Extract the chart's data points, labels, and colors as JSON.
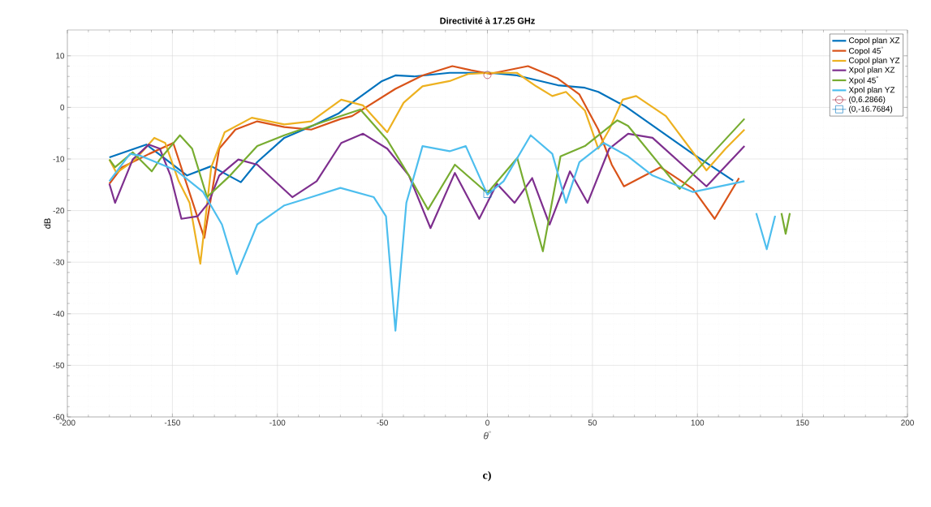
{
  "chart_data": {
    "type": "line",
    "title": "Directivité à 17.25 GHz",
    "xlabel": "*θ*$^{°}$",
    "ylabel": "dB",
    "xlim": [
      -200,
      200
    ],
    "xticks": [
      -200,
      -150,
      -100,
      -50,
      0,
      50,
      100,
      150,
      200
    ],
    "ylim": [
      -60,
      15
    ],
    "yticks": [
      -60,
      -50,
      -40,
      -30,
      -20,
      -10,
      0,
      10
    ],
    "grid": true,
    "legend": "top right",
    "annotations": [
      "c)"
    ],
    "series": [
      {
        "name": "Copol plan XZ",
        "color": "#0072bd",
        "x": [
          -180,
          -162.4,
          -143,
          -131.5,
          -117.4,
          -109.6,
          -96.7,
          -83,
          -71,
          -64.5,
          -50.2,
          -43.8,
          -35,
          -18,
          1,
          14,
          33.5,
          46.4,
          52.8,
          65.7,
          97.8,
          117
        ],
        "values": [
          -9.7,
          -7.2,
          -13.2,
          -11.4,
          -14.5,
          -10.6,
          -5.9,
          -3.5,
          -1.2,
          0.9,
          5.1,
          6.2,
          6.0,
          6.7,
          6.7,
          6.2,
          4.3,
          3.8,
          3.0,
          0.2,
          -9.0,
          -14.2
        ]
      },
      {
        "name": "Copol 45$^{°}$",
        "color": "#d95319",
        "x": [
          -180,
          -174,
          -161,
          -149.6,
          -134.8,
          -127.7,
          -120,
          -109.6,
          -96.7,
          -83.9,
          -69.6,
          -64.5,
          -43.8,
          -30.9,
          -16.7,
          -7.7,
          1.2,
          19.3,
          33.5,
          43.8,
          52.8,
          59.2,
          65,
          82.4,
          97.9,
          108.2,
          119.8
        ],
        "values": [
          -14.8,
          -11.6,
          -9.0,
          -6.9,
          -25.3,
          -8.0,
          -4.3,
          -2.7,
          -3.8,
          -4.3,
          -2.2,
          -1.7,
          3.6,
          6.2,
          8.0,
          7.2,
          6.5,
          8.0,
          5.6,
          2.5,
          -4.3,
          -11.1,
          -15.3,
          -11.6,
          -15.8,
          -21.6,
          -13.7
        ]
      },
      {
        "name": "Copol plan YZ",
        "color": "#edb120",
        "x": [
          -180,
          -176.6,
          -167.6,
          -158.6,
          -153.4,
          -147,
          -141.8,
          -136.7,
          -131.5,
          -125.1,
          -112.2,
          -96.7,
          -83.9,
          -69.6,
          -59.3,
          -47.7,
          -39.9,
          -30.9,
          -18,
          -9,
          1.2,
          14,
          23.2,
          30.9,
          37.4,
          46.4,
          52.8,
          58,
          64.4,
          70.8,
          85,
          104.3,
          113.4,
          122.4
        ],
        "values": [
          -10.1,
          -12.7,
          -10.1,
          -5.9,
          -6.9,
          -14.3,
          -18.5,
          -30.3,
          -11.6,
          -4.8,
          -2.0,
          -3.3,
          -2.7,
          1.5,
          0.4,
          -4.8,
          0.9,
          4.1,
          5.1,
          6.5,
          6.7,
          6.7,
          4.1,
          2.2,
          3.0,
          -0.6,
          -8.0,
          -4.3,
          1.5,
          2.2,
          -1.7,
          -12.2,
          -8.0,
          -4.3
        ]
      },
      {
        "name": "Xpol plan XZ",
        "color": "#7e2f8e",
        "x": [
          -180,
          -177.3,
          -168.9,
          -161.2,
          -156,
          -150.9,
          -145.7,
          -138,
          -132.8,
          -127.7,
          -118.6,
          -109.6,
          -92.9,
          -81.3,
          -69.6,
          -59.2,
          -47.7,
          -37.4,
          -27.1,
          -15.5,
          -3.9,
          4.5,
          12.9,
          21.3,
          29.6,
          39.3,
          47.7,
          58,
          67,
          78.6,
          104.3,
          122.4
        ],
        "values": [
          -14.8,
          -18.5,
          -10.1,
          -7.2,
          -8.0,
          -13.2,
          -21.6,
          -21.1,
          -18.5,
          -13.2,
          -10.1,
          -11.1,
          -17.4,
          -14.3,
          -6.9,
          -5.1,
          -8.0,
          -13.2,
          -23.4,
          -12.7,
          -21.6,
          -14.8,
          -18.5,
          -13.7,
          -22.7,
          -12.4,
          -18.5,
          -8.0,
          -5.1,
          -5.9,
          -15.3,
          -7.5
        ]
      },
      {
        "name": "Xpol 45$^{°}$",
        "color": "#77ac30",
        "x": [
          -180,
          -177.3,
          -168.9,
          -159.8,
          -156,
          -146.4,
          -140.6,
          -133.5,
          -122.5,
          -109.6,
          -96.7,
          -77.4,
          -60.5,
          -47.7,
          -37.4,
          -28.3,
          -15.5,
          0,
          14.2,
          26.4,
          34.8,
          46.4,
          61.8,
          67,
          91.5,
          122.4,
          130,
          140,
          142,
          144
        ],
        "values": [
          -10.1,
          -11.6,
          -8.7,
          -12.4,
          -10.1,
          -5.4,
          -8.0,
          -17.4,
          -13.2,
          -7.5,
          -5.4,
          -2.7,
          -0.4,
          -6.3,
          -13.2,
          -19.8,
          -11.1,
          -16.6,
          -9.8,
          -27.9,
          -9.5,
          -7.5,
          -2.5,
          -3.6,
          -15.8,
          -2.2,
          null,
          -20.5,
          -24.5,
          -20.5
        ]
      },
      {
        "name": "Xpol plan YZ",
        "color": "#4dbeee",
        "x": [
          -180,
          -170.2,
          -165,
          -148.3,
          -135.4,
          -126.4,
          -119.3,
          -109.6,
          -96.7,
          -83.9,
          -70,
          -54.1,
          -48.3,
          -43.8,
          -38.6,
          -30.9,
          -18,
          -10.3,
          0,
          7.7,
          20.6,
          30.9,
          37.4,
          43.8,
          55.4,
          67,
          78.6,
          97.9,
          122.4,
          125,
          128,
          133,
          137
        ],
        "values": [
          -14.3,
          -9.0,
          -9.4,
          -12.2,
          -16.4,
          -22.7,
          -32.3,
          -22.7,
          -19.0,
          -17.4,
          -15.6,
          -17.4,
          -21.1,
          -43.3,
          -18.5,
          -7.5,
          -8.5,
          -7.5,
          -16.9,
          -14.3,
          -5.4,
          -9.0,
          -18.5,
          -10.6,
          -6.9,
          -9.5,
          -13.2,
          -16.4,
          -14.3,
          null,
          -20.5,
          -27.5,
          -21
        ]
      },
      {
        "name": "(0,6.2866)",
        "type": "scatter",
        "marker": "circle",
        "color": "#a2142f",
        "x": [
          0
        ],
        "values": [
          6.2866
        ]
      },
      {
        "name": "(0,-16.7684)",
        "type": "scatter",
        "marker": "square",
        "color": "#0072bd",
        "x": [
          0
        ],
        "values": [
          -16.7684
        ]
      }
    ]
  }
}
